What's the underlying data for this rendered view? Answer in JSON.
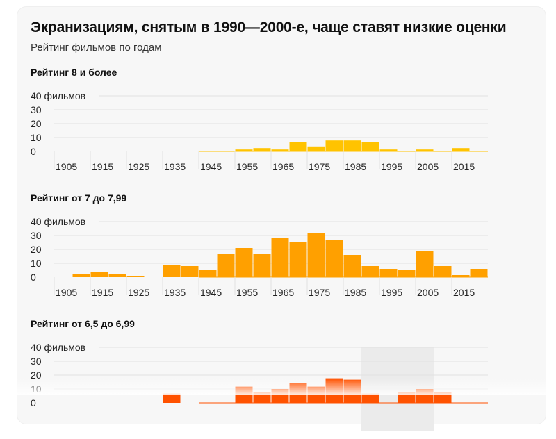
{
  "title": "Экранизациям, снятым в 1990—2000-е, чаще ставят низкие оценки",
  "subtitle": "Рейтинг фильмов по годам",
  "chart_data": [
    {
      "type": "bar",
      "title": "Рейтинг 8 и более",
      "color": "#ffc300",
      "bin_start_years": [
        1900,
        1905,
        1910,
        1915,
        1920,
        1925,
        1930,
        1935,
        1940,
        1945,
        1950,
        1955,
        1960,
        1965,
        1970,
        1975,
        1980,
        1985,
        1990,
        1995,
        2000,
        2005,
        2010,
        2015
      ],
      "values": [
        0,
        0,
        0,
        0,
        0,
        0,
        0,
        0,
        0.3,
        0.3,
        1.4,
        2.4,
        1.4,
        6.6,
        3.6,
        7.9,
        7.9,
        6.6,
        1.4,
        0.3,
        1.4,
        0.3,
        2.4,
        0.3
      ],
      "y_ticks": [
        "0",
        "10",
        "20",
        "30",
        "40 фильмов"
      ],
      "x_ticks": [
        "1905",
        "1915",
        "1925",
        "1935",
        "1945",
        "1955",
        "1965",
        "1975",
        "1985",
        "1995",
        "2005",
        "2015"
      ],
      "ylim": [
        0,
        40
      ],
      "xlim": [
        1900,
        2020
      ],
      "grid": true
    },
    {
      "type": "bar",
      "title": "Рейтинг от 7 до 7,99",
      "color": "#ffa000",
      "bin_start_years": [
        1900,
        1905,
        1910,
        1915,
        1920,
        1925,
        1930,
        1935,
        1940,
        1945,
        1950,
        1955,
        1960,
        1965,
        1970,
        1975,
        1980,
        1985,
        1990,
        1995,
        2000,
        2005,
        2010,
        2015
      ],
      "values": [
        0,
        2,
        4,
        2,
        1,
        0,
        9,
        8,
        5,
        17,
        21,
        17,
        28,
        25,
        32,
        27,
        16,
        8,
        6,
        5,
        19,
        8,
        1.5,
        6
      ],
      "y_ticks": [
        "0",
        "10",
        "20",
        "30",
        "40 фильмов"
      ],
      "x_ticks": [
        "1905",
        "1915",
        "1925",
        "1935",
        "1945",
        "1955",
        "1965",
        "1975",
        "1985",
        "1995",
        "2005",
        "2015"
      ],
      "ylim": [
        0,
        40
      ],
      "xlim": [
        1900,
        2020
      ],
      "grid": true
    },
    {
      "type": "bar",
      "title": "Рейтинг от 6,5 до 6,99",
      "color": "#ff5200",
      "highlight_range": [
        1985,
        2005
      ],
      "highlight_color": "#ebebeb",
      "bin_start_years": [
        1900,
        1905,
        1910,
        1915,
        1920,
        1925,
        1930,
        1935,
        1940,
        1945,
        1950,
        1955,
        1960,
        1965,
        1970,
        1975,
        1980,
        1985,
        1990,
        1995,
        2000,
        2005,
        2010,
        2015
      ],
      "values": [
        null,
        null,
        null,
        null,
        null,
        null,
        6.7,
        null,
        null,
        null,
        11.7,
        7.7,
        10,
        14,
        11.7,
        17.7,
        16.7,
        6.7,
        null,
        7.7,
        10,
        7.7,
        null,
        null
      ],
      "y_ticks": [
        "0",
        "10",
        "20",
        "30",
        "40 фильмов"
      ],
      "ylim": [
        0,
        40
      ],
      "xlim": [
        1900,
        2020
      ],
      "grid": true
    }
  ]
}
